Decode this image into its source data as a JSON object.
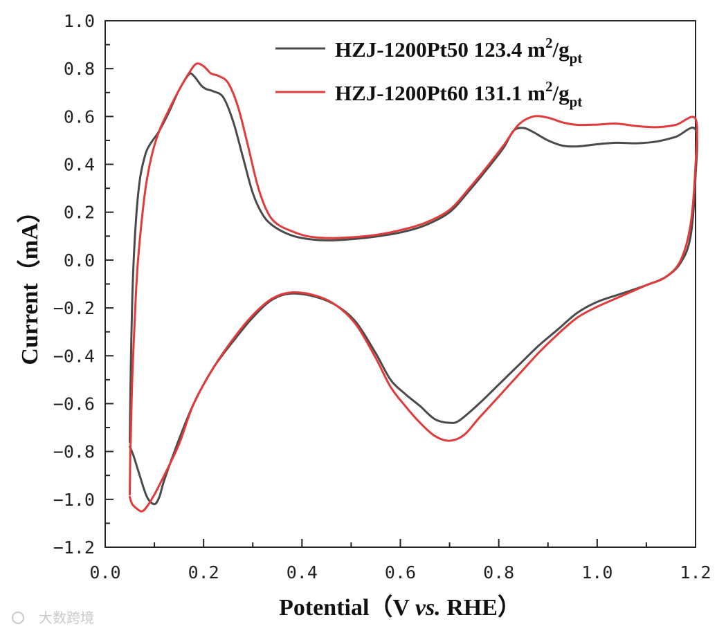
{
  "chart_data": {
    "type": "line",
    "title": "",
    "xlabel": {
      "main": "Potential（V ",
      "ital": "vs.",
      "tail": " RHE）"
    },
    "ylabel": "Current（mA）",
    "xlim": [
      0.0,
      1.2
    ],
    "ylim": [
      -1.2,
      1.0
    ],
    "x_ticks": [
      "0.0",
      "0.2",
      "0.4",
      "0.6",
      "0.8",
      "1.0",
      "1.2"
    ],
    "y_ticks": [
      "1.0",
      "0.8",
      "0.6",
      "0.4",
      "0.2",
      "0.0",
      "−0.2",
      "−0.4",
      "−0.6",
      "−0.8",
      "−1.0",
      "−1.2"
    ],
    "grid": false,
    "legend_position": "top-right",
    "series": [
      {
        "name": "HZJ-1200Pt50 123.4 m2/gpt",
        "label": {
          "a": "HZJ-1200Pt50 123.4 m",
          "sup": "2",
          "b": "/g",
          "sub": "pt"
        },
        "color": "#4a4a4a",
        "points": [
          [
            0.05,
            -0.76
          ],
          [
            0.052,
            -0.45
          ],
          [
            0.056,
            -0.1
          ],
          [
            0.062,
            0.15
          ],
          [
            0.07,
            0.33
          ],
          [
            0.08,
            0.43
          ],
          [
            0.09,
            0.48
          ],
          [
            0.11,
            0.54
          ],
          [
            0.13,
            0.62
          ],
          [
            0.15,
            0.71
          ],
          [
            0.17,
            0.775
          ],
          [
            0.18,
            0.77
          ],
          [
            0.195,
            0.73
          ],
          [
            0.205,
            0.715
          ],
          [
            0.22,
            0.705
          ],
          [
            0.24,
            0.68
          ],
          [
            0.26,
            0.58
          ],
          [
            0.28,
            0.43
          ],
          [
            0.3,
            0.28
          ],
          [
            0.32,
            0.19
          ],
          [
            0.34,
            0.145
          ],
          [
            0.37,
            0.11
          ],
          [
            0.4,
            0.092
          ],
          [
            0.45,
            0.082
          ],
          [
            0.5,
            0.087
          ],
          [
            0.55,
            0.098
          ],
          [
            0.6,
            0.115
          ],
          [
            0.65,
            0.145
          ],
          [
            0.7,
            0.2
          ],
          [
            0.74,
            0.29
          ],
          [
            0.78,
            0.39
          ],
          [
            0.81,
            0.47
          ],
          [
            0.83,
            0.54
          ],
          [
            0.85,
            0.552
          ],
          [
            0.87,
            0.535
          ],
          [
            0.9,
            0.5
          ],
          [
            0.93,
            0.478
          ],
          [
            0.96,
            0.475
          ],
          [
            1.0,
            0.484
          ],
          [
            1.04,
            0.49
          ],
          [
            1.08,
            0.488
          ],
          [
            1.12,
            0.495
          ],
          [
            1.16,
            0.515
          ],
          [
            1.2,
            0.545
          ],
          [
            1.2,
            0.35
          ],
          [
            1.19,
            0.1
          ],
          [
            1.17,
            -0.01
          ],
          [
            1.14,
            -0.07
          ],
          [
            1.1,
            -0.105
          ],
          [
            1.05,
            -0.14
          ],
          [
            1.0,
            -0.175
          ],
          [
            0.96,
            -0.22
          ],
          [
            0.92,
            -0.29
          ],
          [
            0.88,
            -0.36
          ],
          [
            0.84,
            -0.44
          ],
          [
            0.8,
            -0.52
          ],
          [
            0.76,
            -0.6
          ],
          [
            0.72,
            -0.67
          ],
          [
            0.7,
            -0.68
          ],
          [
            0.67,
            -0.665
          ],
          [
            0.64,
            -0.61
          ],
          [
            0.61,
            -0.56
          ],
          [
            0.58,
            -0.5
          ],
          [
            0.55,
            -0.39
          ],
          [
            0.51,
            -0.26
          ],
          [
            0.47,
            -0.19
          ],
          [
            0.43,
            -0.155
          ],
          [
            0.38,
            -0.14
          ],
          [
            0.34,
            -0.165
          ],
          [
            0.3,
            -0.24
          ],
          [
            0.26,
            -0.34
          ],
          [
            0.22,
            -0.45
          ],
          [
            0.18,
            -0.6
          ],
          [
            0.15,
            -0.75
          ],
          [
            0.12,
            -0.92
          ],
          [
            0.11,
            -0.99
          ],
          [
            0.1,
            -1.02
          ],
          [
            0.085,
            -0.99
          ],
          [
            0.07,
            -0.9
          ],
          [
            0.058,
            -0.82
          ],
          [
            0.05,
            -0.78
          ]
        ]
      },
      {
        "name": "HZJ-1200Pt60 131.1 m2/gpt",
        "label": {
          "a": "HZJ-1200Pt60 131.1 m",
          "sup": "2",
          "b": "/g",
          "sub": "pt"
        },
        "color": "#e03a3a",
        "points": [
          [
            0.05,
            -0.98
          ],
          [
            0.051,
            -0.8
          ],
          [
            0.052,
            -0.74
          ],
          [
            0.055,
            -0.5
          ],
          [
            0.06,
            -0.25
          ],
          [
            0.065,
            -0.05
          ],
          [
            0.072,
            0.12
          ],
          [
            0.082,
            0.3
          ],
          [
            0.095,
            0.44
          ],
          [
            0.11,
            0.54
          ],
          [
            0.13,
            0.63
          ],
          [
            0.15,
            0.71
          ],
          [
            0.17,
            0.78
          ],
          [
            0.185,
            0.82
          ],
          [
            0.2,
            0.81
          ],
          [
            0.215,
            0.78
          ],
          [
            0.23,
            0.77
          ],
          [
            0.25,
            0.74
          ],
          [
            0.27,
            0.64
          ],
          [
            0.29,
            0.48
          ],
          [
            0.31,
            0.31
          ],
          [
            0.33,
            0.2
          ],
          [
            0.35,
            0.15
          ],
          [
            0.38,
            0.12
          ],
          [
            0.41,
            0.1
          ],
          [
            0.45,
            0.092
          ],
          [
            0.5,
            0.095
          ],
          [
            0.55,
            0.105
          ],
          [
            0.6,
            0.125
          ],
          [
            0.65,
            0.155
          ],
          [
            0.7,
            0.21
          ],
          [
            0.74,
            0.3
          ],
          [
            0.78,
            0.4
          ],
          [
            0.81,
            0.48
          ],
          [
            0.84,
            0.565
          ],
          [
            0.87,
            0.6
          ],
          [
            0.9,
            0.595
          ],
          [
            0.93,
            0.575
          ],
          [
            0.96,
            0.565
          ],
          [
            1.0,
            0.566
          ],
          [
            1.04,
            0.57
          ],
          [
            1.08,
            0.56
          ],
          [
            1.12,
            0.555
          ],
          [
            1.16,
            0.565
          ],
          [
            1.2,
            0.59
          ],
          [
            1.2,
            0.4
          ],
          [
            1.19,
            0.15
          ],
          [
            1.17,
            0.0
          ],
          [
            1.14,
            -0.07
          ],
          [
            1.1,
            -0.105
          ],
          [
            1.05,
            -0.15
          ],
          [
            1.0,
            -0.195
          ],
          [
            0.96,
            -0.24
          ],
          [
            0.92,
            -0.31
          ],
          [
            0.88,
            -0.39
          ],
          [
            0.84,
            -0.48
          ],
          [
            0.8,
            -0.57
          ],
          [
            0.76,
            -0.66
          ],
          [
            0.73,
            -0.73
          ],
          [
            0.7,
            -0.755
          ],
          [
            0.67,
            -0.735
          ],
          [
            0.64,
            -0.68
          ],
          [
            0.61,
            -0.61
          ],
          [
            0.58,
            -0.53
          ],
          [
            0.55,
            -0.41
          ],
          [
            0.51,
            -0.27
          ],
          [
            0.47,
            -0.19
          ],
          [
            0.43,
            -0.15
          ],
          [
            0.38,
            -0.135
          ],
          [
            0.34,
            -0.16
          ],
          [
            0.3,
            -0.23
          ],
          [
            0.26,
            -0.33
          ],
          [
            0.22,
            -0.45
          ],
          [
            0.18,
            -0.6
          ],
          [
            0.15,
            -0.77
          ],
          [
            0.12,
            -0.9
          ],
          [
            0.1,
            -0.98
          ],
          [
            0.085,
            -1.03
          ],
          [
            0.075,
            -1.05
          ],
          [
            0.065,
            -1.04
          ],
          [
            0.055,
            -1.02
          ],
          [
            0.05,
            -0.99
          ]
        ]
      }
    ]
  },
  "watermark": "大数跨境"
}
